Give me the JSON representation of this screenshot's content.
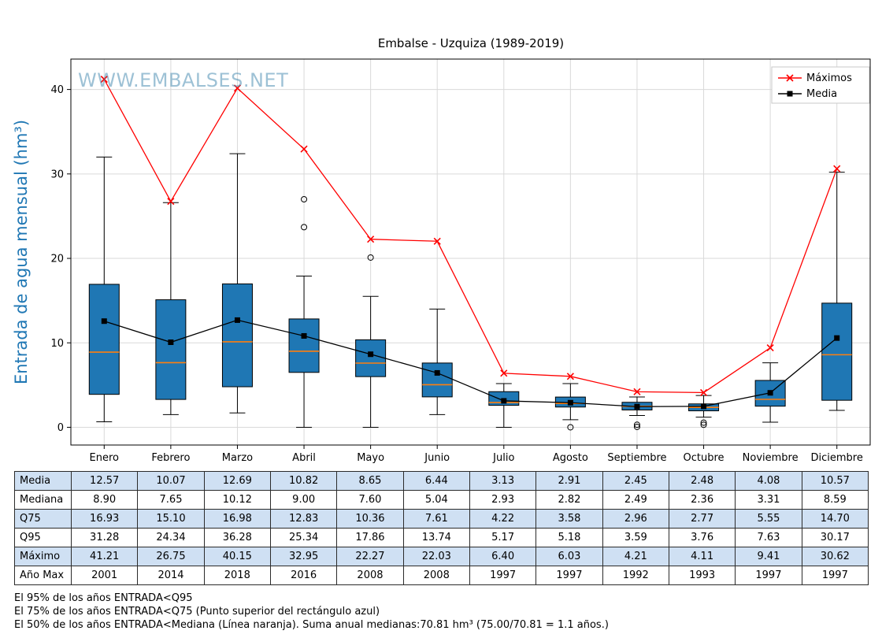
{
  "watermark": "WWW.EMBALSES.NET",
  "chart_data": {
    "type": "boxplot",
    "title": "Embalse - Uzquiza (1989-2019)",
    "ylabel": "Entrada de agua mensual (hm³)",
    "ylim": [
      -2.1,
      43.6
    ],
    "yticks": [
      0,
      10,
      20,
      30,
      40
    ],
    "grid": true,
    "legend_position": "upper right",
    "categories": [
      "Enero",
      "Febrero",
      "Marzo",
      "Abril",
      "Mayo",
      "Junio",
      "Julio",
      "Agosto",
      "Septiembre",
      "Octubre",
      "Noviembre",
      "Diciembre"
    ],
    "boxes": [
      {
        "q1": 3.9,
        "median": 8.9,
        "q3": 16.93,
        "whisker_low": 0.65,
        "whisker_high": 32.0,
        "outliers": []
      },
      {
        "q1": 3.3,
        "median": 7.65,
        "q3": 15.1,
        "whisker_low": 1.5,
        "whisker_high": 26.6,
        "outliers": []
      },
      {
        "q1": 4.8,
        "median": 10.12,
        "q3": 16.98,
        "whisker_low": 1.7,
        "whisker_high": 32.4,
        "outliers": []
      },
      {
        "q1": 6.5,
        "median": 9.0,
        "q3": 12.83,
        "whisker_low": 0.0,
        "whisker_high": 17.9,
        "outliers": [
          23.7,
          27.0
        ]
      },
      {
        "q1": 6.0,
        "median": 7.6,
        "q3": 10.36,
        "whisker_low": 0.0,
        "whisker_high": 15.5,
        "outliers": [
          20.1
        ]
      },
      {
        "q1": 3.6,
        "median": 5.04,
        "q3": 7.61,
        "whisker_low": 1.5,
        "whisker_high": 14.0,
        "outliers": []
      },
      {
        "q1": 2.6,
        "median": 2.93,
        "q3": 4.22,
        "whisker_low": 0.0,
        "whisker_high": 5.17,
        "outliers": []
      },
      {
        "q1": 2.4,
        "median": 2.82,
        "q3": 3.58,
        "whisker_low": 0.9,
        "whisker_high": 5.18,
        "outliers": [
          0.0
        ]
      },
      {
        "q1": 2.05,
        "median": 2.49,
        "q3": 2.96,
        "whisker_low": 1.4,
        "whisker_high": 3.59,
        "outliers": [
          0.3,
          0.05
        ]
      },
      {
        "q1": 1.95,
        "median": 2.36,
        "q3": 2.77,
        "whisker_low": 1.2,
        "whisker_high": 3.76,
        "outliers": [
          0.55,
          0.3
        ]
      },
      {
        "q1": 2.5,
        "median": 3.31,
        "q3": 5.55,
        "whisker_low": 0.6,
        "whisker_high": 7.63,
        "outliers": []
      },
      {
        "q1": 3.2,
        "median": 8.59,
        "q3": 14.7,
        "whisker_low": 2.0,
        "whisker_high": 30.2,
        "outliers": []
      }
    ],
    "series": [
      {
        "name": "Máximos",
        "marker": "x",
        "color": "#ff0000",
        "values": [
          41.21,
          26.75,
          40.15,
          32.95,
          22.27,
          22.03,
          6.4,
          6.03,
          4.21,
          4.11,
          9.41,
          30.62
        ]
      },
      {
        "name": "Media",
        "marker": "square",
        "color": "#000000",
        "values": [
          12.57,
          10.07,
          12.69,
          10.82,
          8.65,
          6.44,
          3.13,
          2.91,
          2.45,
          2.48,
          4.08,
          10.57
        ]
      }
    ],
    "colors": {
      "box_fill": "#1f77b4",
      "median_line": "#ff7f0e",
      "max_line": "#ff0000",
      "mean_line": "#000000",
      "grid": "#d9d9d9",
      "ylabel": "#1f77b4",
      "watermark": "#3d85ad"
    }
  },
  "table": {
    "columns": [
      "Enero",
      "Febrero",
      "Marzo",
      "Abril",
      "Mayo",
      "Junio",
      "Julio",
      "Agosto",
      "Septiembre",
      "Octubre",
      "Noviembre",
      "Diciembre"
    ],
    "rows": [
      {
        "label": "Media",
        "values": [
          "12.57",
          "10.07",
          "12.69",
          "10.82",
          "8.65",
          "6.44",
          "3.13",
          "2.91",
          "2.45",
          "2.48",
          "4.08",
          "10.57"
        ]
      },
      {
        "label": "Mediana",
        "values": [
          "8.90",
          "7.65",
          "10.12",
          "9.00",
          "7.60",
          "5.04",
          "2.93",
          "2.82",
          "2.49",
          "2.36",
          "3.31",
          "8.59"
        ]
      },
      {
        "label": "Q75",
        "values": [
          "16.93",
          "15.10",
          "16.98",
          "12.83",
          "10.36",
          "7.61",
          "4.22",
          "3.58",
          "2.96",
          "2.77",
          "5.55",
          "14.70"
        ]
      },
      {
        "label": "Q95",
        "values": [
          "31.28",
          "24.34",
          "36.28",
          "25.34",
          "17.86",
          "13.74",
          "5.17",
          "5.18",
          "3.59",
          "3.76",
          "7.63",
          "30.17"
        ]
      },
      {
        "label": "Máximo",
        "values": [
          "41.21",
          "26.75",
          "40.15",
          "32.95",
          "22.27",
          "22.03",
          "6.40",
          "6.03",
          "4.21",
          "4.11",
          "9.41",
          "30.62"
        ]
      },
      {
        "label": "Año Max",
        "values": [
          "2001",
          "2014",
          "2018",
          "2016",
          "2008",
          "2008",
          "1997",
          "1997",
          "1992",
          "1993",
          "1997",
          "1997"
        ]
      }
    ]
  },
  "footer": {
    "line1": "El 95% de los años ENTRADA<Q95",
    "line2": "El 75% de los años ENTRADA<Q75 (Punto superior del rectángulo azul)",
    "line3": "El 50% de los años ENTRADA<Mediana (Línea naranja). Suma anual medianas:70.81 hm³ (75.00/70.81 = 1.1 años.)"
  }
}
